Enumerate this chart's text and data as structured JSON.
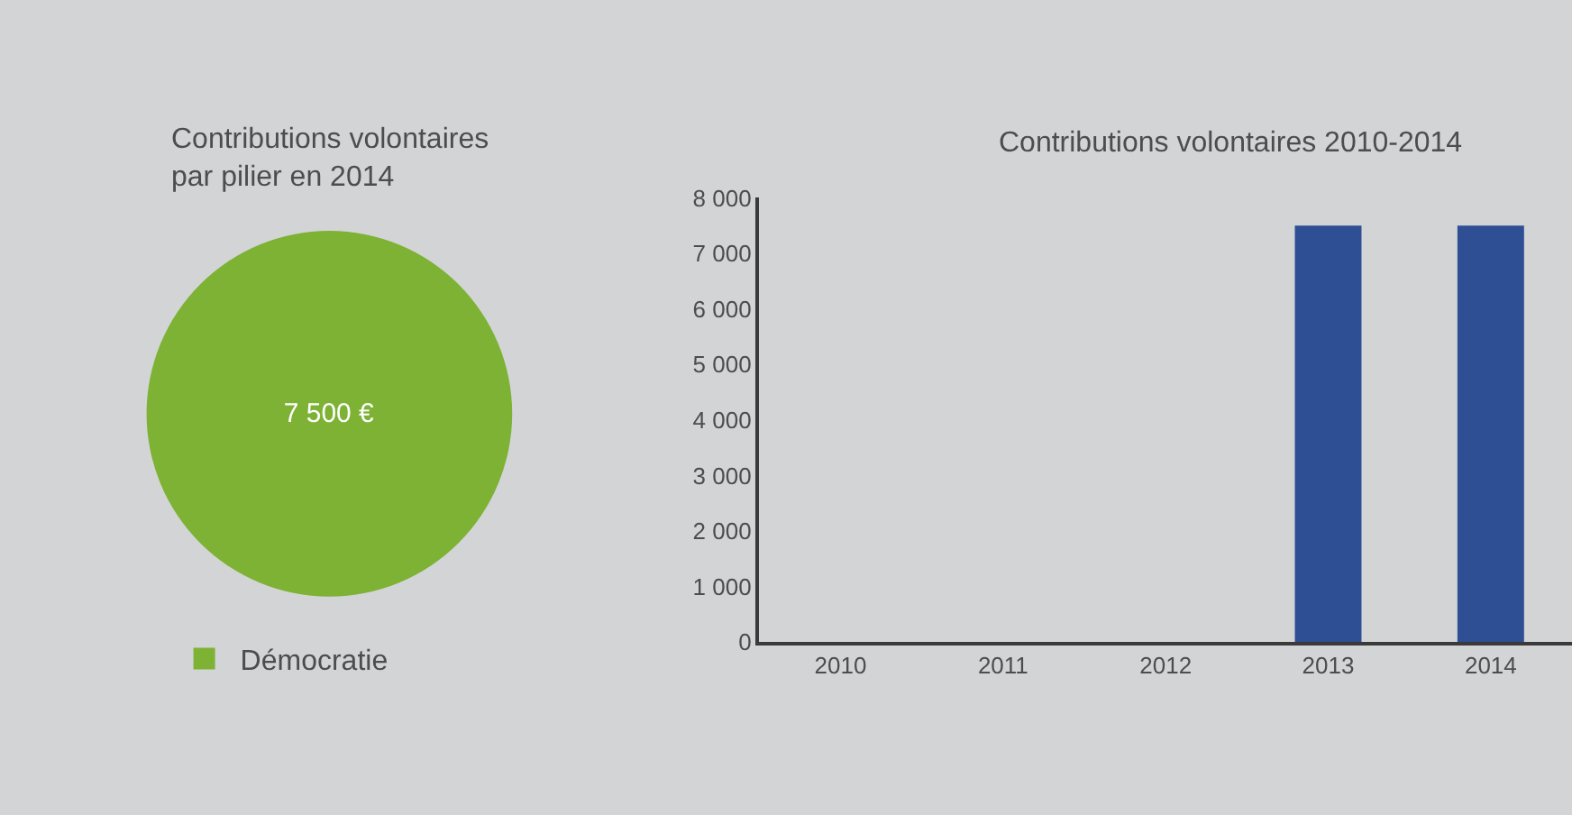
{
  "chart_data": [
    {
      "type": "pie",
      "title": "Contributions volontaires\npar pilier en 2014",
      "categories": [
        "Démocratie"
      ],
      "values": [
        7500
      ],
      "colors": [
        "#7db234"
      ],
      "value_labels": [
        "7 500 €"
      ],
      "legend": "bottom"
    },
    {
      "type": "bar",
      "title": "Contributions volontaires 2010-2014",
      "categories": [
        "2010",
        "2011",
        "2012",
        "2013",
        "2014"
      ],
      "values": [
        0,
        0,
        0,
        7500,
        7500
      ],
      "color": "#2e4f94",
      "ylim": [
        0,
        8000
      ],
      "yticks": [
        0,
        {
          "value": 1000,
          "label": "1 000"
        },
        {
          "value": 2000,
          "label": "2 000"
        },
        {
          "value": 3000,
          "label": "3 000"
        },
        {
          "value": 4000,
          "label": "4 000"
        },
        {
          "value": 5000,
          "label": "5 000"
        },
        {
          "value": 6000,
          "label": "6 000"
        },
        {
          "value": 7000,
          "label": "7 000"
        },
        {
          "value": 8000,
          "label": "8 000"
        }
      ]
    }
  ]
}
